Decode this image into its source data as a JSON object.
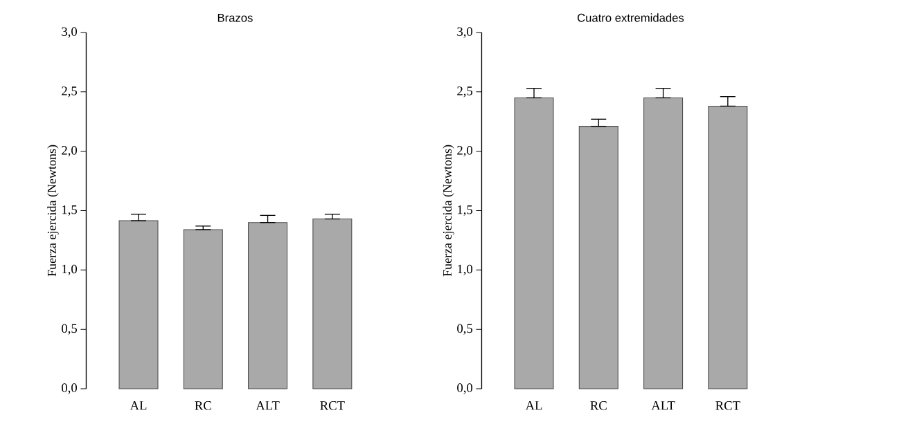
{
  "chart_data": [
    {
      "type": "bar",
      "title": "Brazos",
      "ylabel": "Fuerza ejercida (Newtons)",
      "categories": [
        "AL",
        "RC",
        "ALT",
        "RCT"
      ],
      "values": [
        1.415,
        1.34,
        1.4,
        1.43
      ],
      "errors": [
        [
          1.415,
          1.47
        ],
        [
          1.34,
          1.37
        ],
        [
          1.4,
          1.46
        ],
        [
          1.43,
          1.47
        ]
      ],
      "color": "#a9a9a9",
      "ylim": [
        0,
        3
      ],
      "yticks": [
        {
          "value": 0,
          "label": "0,0"
        },
        {
          "value": 0.5,
          "label": "0,5"
        },
        {
          "value": 1,
          "label": "1,0"
        },
        {
          "value": 1.5,
          "label": "1,5"
        },
        {
          "value": 2,
          "label": "2,0"
        },
        {
          "value": 2.5,
          "label": "2,5"
        },
        {
          "value": 3,
          "label": "3,0"
        }
      ]
    },
    {
      "type": "bar",
      "title": "Cuatro extremidades",
      "ylabel": "Fuerza ejercida (Newtons)",
      "categories": [
        "AL",
        "RC",
        "ALT",
        "RCT"
      ],
      "values": [
        2.45,
        2.21,
        2.45,
        2.38
      ],
      "errors": [
        [
          2.45,
          2.53
        ],
        [
          2.21,
          2.27
        ],
        [
          2.45,
          2.53
        ],
        [
          2.38,
          2.46
        ]
      ],
      "color": "#a9a9a9",
      "ylim": [
        0,
        3
      ],
      "yticks": [
        {
          "value": 0,
          "label": "0,0"
        },
        {
          "value": 0.5,
          "label": "0,5"
        },
        {
          "value": 1,
          "label": "1,0"
        },
        {
          "value": 1.5,
          "label": "1,5"
        },
        {
          "value": 2,
          "label": "2,0"
        },
        {
          "value": 2.5,
          "label": "2,5"
        },
        {
          "value": 3,
          "label": "3,0"
        }
      ]
    }
  ]
}
